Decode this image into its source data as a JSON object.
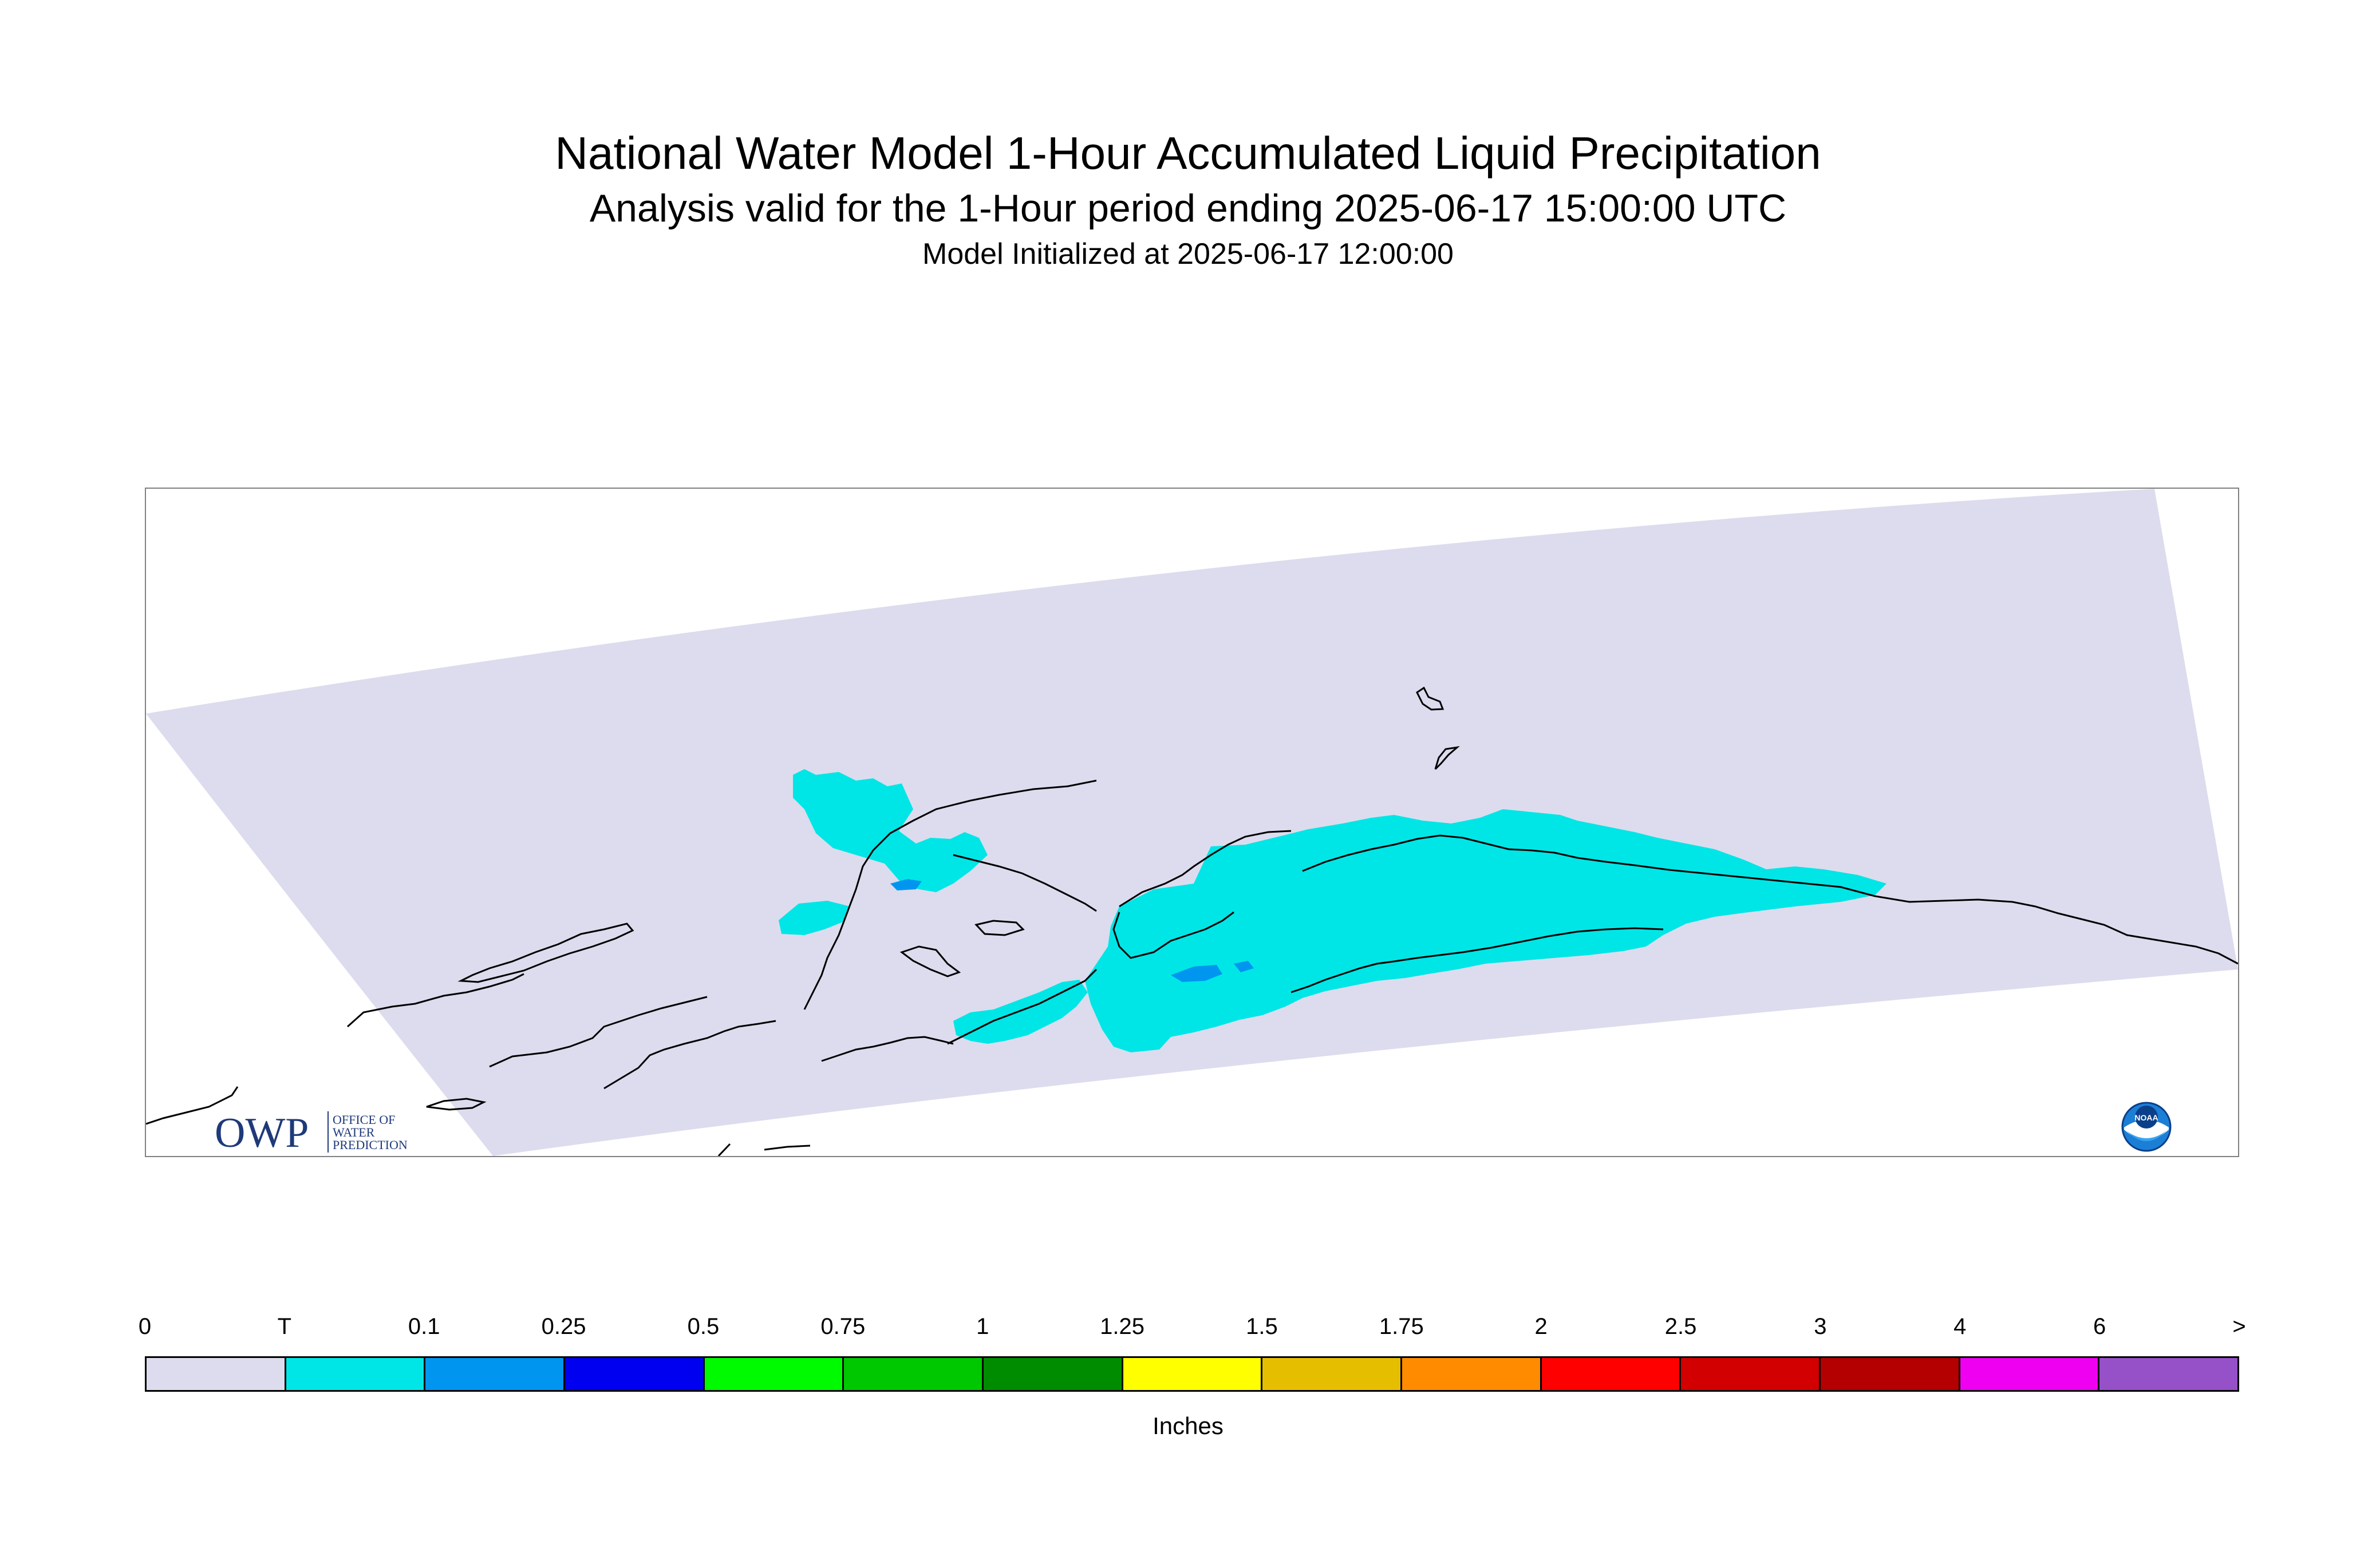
{
  "header": {
    "title": "National Water Model 1-Hour Accumulated Liquid Precipitation",
    "subtitle": "Analysis valid for the 1-Hour period ending 2025-06-17 15:00:00 UTC",
    "initialized": "Model Initialized at 2025-06-17 12:00:00"
  },
  "map": {
    "domain_fill_color": "#dcdcee",
    "precip_color_trace": "#00e6e6",
    "precip_color_light": "#0096f0",
    "coastline_color": "#000000"
  },
  "legend": {
    "labels": [
      "0",
      "T",
      "0.1",
      "0.25",
      "0.5",
      "0.75",
      "1",
      "1.25",
      "1.5",
      "1.75",
      "2",
      "2.5",
      "3",
      "4",
      "6",
      ">"
    ],
    "colors": [
      "#dcdcee",
      "#00e6e6",
      "#0096f0",
      "#0000f0",
      "#00fa00",
      "#00c800",
      "#008c00",
      "#ffff00",
      "#e6be00",
      "#ff8c00",
      "#ff0000",
      "#d20000",
      "#b40000",
      "#f000f0",
      "#9650c8"
    ],
    "units": "Inches"
  },
  "logos": {
    "owp_text": "OWP",
    "owp_line1": "OFFICE OF",
    "owp_line2": "WATER",
    "owp_line3": "PREDICTION",
    "noaa_text": "NOAA"
  }
}
